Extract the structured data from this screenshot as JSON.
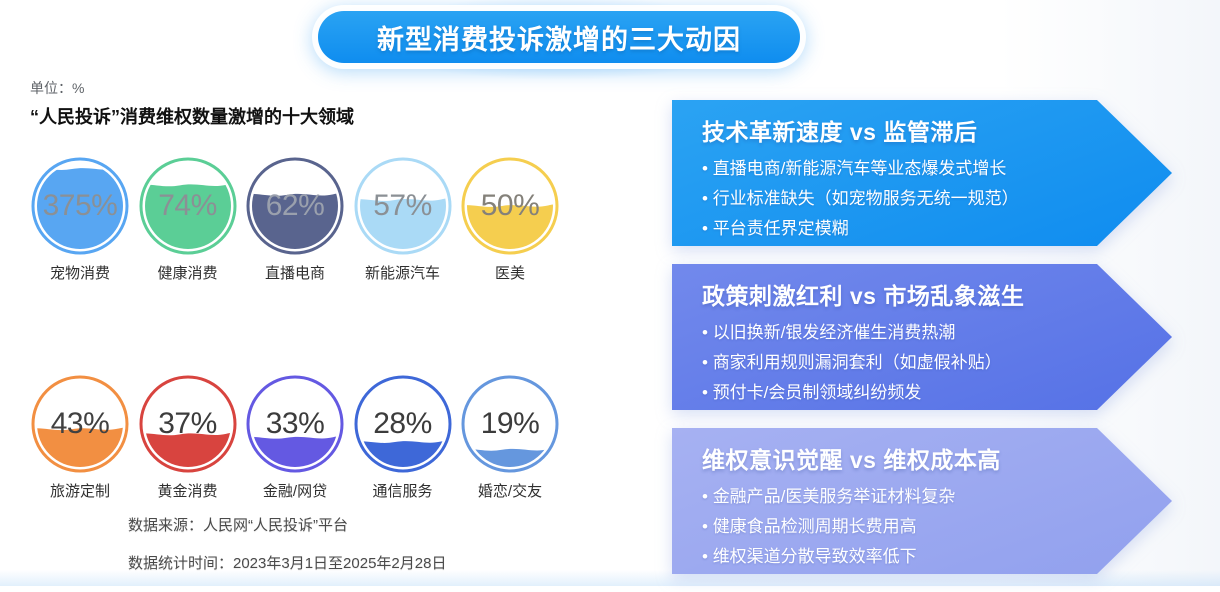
{
  "title": "新型消费投诉激增的三大动因",
  "left_panel": {
    "unit_label": "单位：%",
    "section_title": "“人民投诉”消费维权数量激增的十大领域",
    "source_line1": "数据来源：人民网“人民投诉”平台",
    "source_line2": "数据统计时间：2023年3月1日至2025年2月28日"
  },
  "chart_data": {
    "type": "liquid_fill_percentage_circles",
    "title": "“人民投诉”消费维权数量激增的十大领域",
    "unit": "%",
    "categories": [
      "宠物消费",
      "健康消费",
      "直播电商",
      "新能源汽车",
      "医美",
      "旅游定制",
      "黄金消费",
      "金融/网贷",
      "通信服务",
      "婚恋/交友"
    ],
    "values": [
      375,
      74,
      62,
      57,
      50,
      43,
      37,
      33,
      28,
      19
    ],
    "layout": "2 rows x 5 circles, fill level mirrors percentage",
    "source": "人民网“人民投诉”平台",
    "period": "2023年3月1日至2025年2月28日"
  },
  "circles": [
    {
      "label": "宠物消费",
      "display": "375%",
      "color": "#58a6f2",
      "fill_level": 0.93,
      "value_color": "#8b9095"
    },
    {
      "label": "健康消费",
      "display": "74%",
      "color": "#5bce96",
      "fill_level": 0.74,
      "value_color": "#8b9095"
    },
    {
      "label": "直播电商",
      "display": "62%",
      "color": "#59648e",
      "fill_level": 0.63,
      "value_color": "#9aa0ad"
    },
    {
      "label": "新能源汽车",
      "display": "57%",
      "color": "#aadaf6",
      "fill_level": 0.57,
      "value_color": "#8b9095"
    },
    {
      "label": "医美",
      "display": "50%",
      "color": "#f5ce4f",
      "fill_level": 0.5,
      "value_color": "#84817a"
    },
    {
      "label": "旅游定制",
      "display": "43%",
      "color": "#f28f42",
      "fill_level": 0.44,
      "value_color": "#414141"
    },
    {
      "label": "黄金消费",
      "display": "37%",
      "color": "#d8443f",
      "fill_level": 0.38,
      "value_color": "#3c3c3c"
    },
    {
      "label": "金融/网贷",
      "display": "33%",
      "color": "#6459e2",
      "fill_level": 0.34,
      "value_color": "#3c3c3c"
    },
    {
      "label": "通信服务",
      "display": "28%",
      "color": "#3e68d8",
      "fill_level": 0.29,
      "value_color": "#3c3c3c"
    },
    {
      "label": "婚恋/交友",
      "display": "19%",
      "color": "#6597de",
      "fill_level": 0.2,
      "value_color": "#3c3c3c"
    }
  ],
  "reasons": [
    {
      "title": "技术革新速度 vs 监管滞后",
      "gradient": [
        "#2ba3f3",
        "#0f8cef"
      ],
      "bullets": [
        "直播电商/新能源汽车等业态爆发式增长",
        "行业标准缺失（如宠物服务无统一规范）",
        "平台责任界定模糊"
      ]
    },
    {
      "title": "政策刺激红利 vs 市场乱象滋生",
      "gradient": [
        "#7289ec",
        "#5571e6"
      ],
      "bullets": [
        "以旧换新/银发经济催生消费热潮",
        "商家利用规则漏洞套利（如虚假补贴）",
        "预付卡/会员制领域纠纷频发"
      ]
    },
    {
      "title": "维权意识觉醒 vs 维权成本高",
      "gradient": [
        "#a6b1f2",
        "#91a0ee"
      ],
      "bullets": [
        "金融产品/医美服务举证材料复杂",
        "健康食品检测周期长费用高",
        "维权渠道分散导致效率低下"
      ]
    }
  ]
}
